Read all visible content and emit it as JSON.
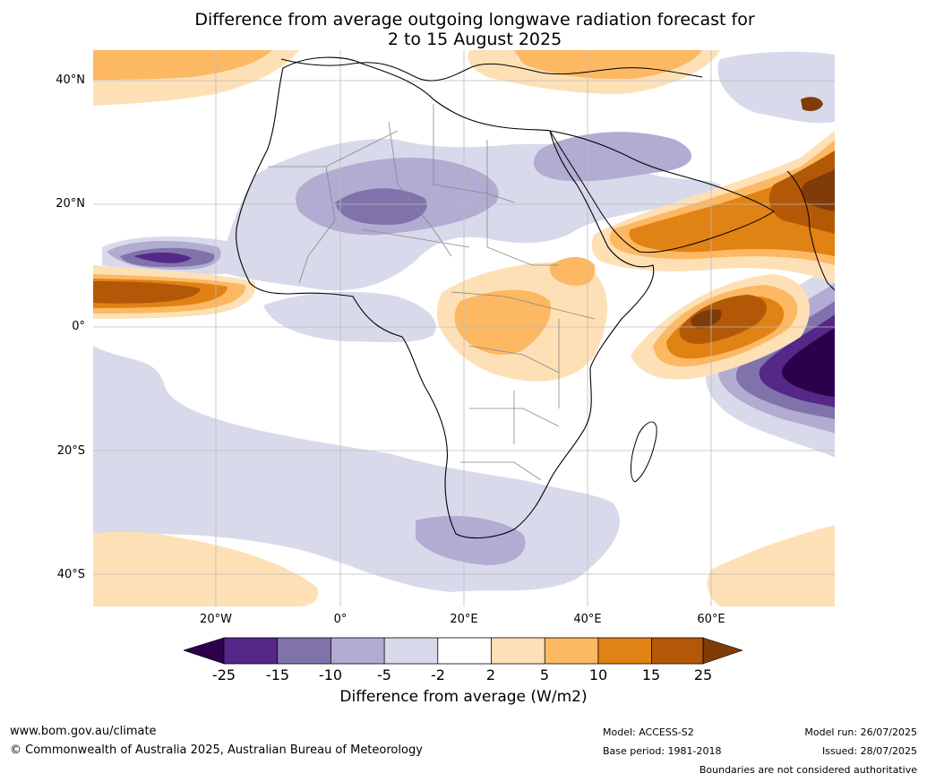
{
  "title": {
    "line1": "Difference from average outgoing longwave radiation forecast for",
    "line2": "2 to 15 August 2025"
  },
  "axes": {
    "latitude_labels": [
      "40°N",
      "20°N",
      "0°",
      "20°S",
      "40°S"
    ],
    "longitude_labels": [
      "20°W",
      "0°",
      "20°E",
      "40°E",
      "60°E"
    ]
  },
  "colorbar": {
    "ticks": [
      "-25",
      "-15",
      "-10",
      "-5",
      "-2",
      "2",
      "5",
      "10",
      "15",
      "25"
    ],
    "label": "Difference from average (W/m2)",
    "colors": [
      "#2d004b",
      "#542788",
      "#8073ac",
      "#b2abd2",
      "#d8daeb",
      "#ffffff",
      "#fee0b6",
      "#fdb863",
      "#e08214",
      "#b35806",
      "#7f3b08"
    ]
  },
  "footer": {
    "website": "www.bom.gov.au/climate",
    "copyright": "© Commonwealth of Australia 2025, Australian Bureau of Meteorology",
    "model": "Model: ACCESS-S2",
    "base_period": "Base period: 1981-2018",
    "model_run": "Model run: 26/07/2025",
    "issued": "Issued: 28/07/2025",
    "disclaimer": "Boundaries are not considered authoritative"
  }
}
